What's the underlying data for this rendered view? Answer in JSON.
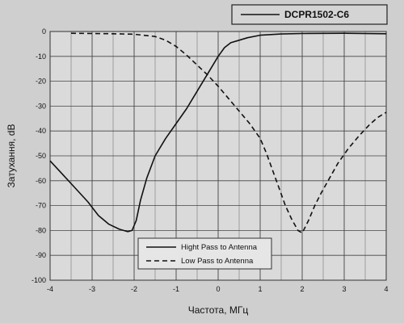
{
  "chart_data": {
    "type": "line",
    "title": "",
    "xlabel": "Частота, МГц",
    "ylabel": "Затухання, dB",
    "xlim": [
      -4,
      4
    ],
    "ylim": [
      -100,
      0
    ],
    "x_ticks": [
      -4,
      -3,
      -2,
      -1,
      0,
      1,
      2,
      3,
      4
    ],
    "y_ticks": [
      0,
      -10,
      -20,
      -30,
      -40,
      -50,
      -60,
      -70,
      -80,
      -90,
      -100
    ],
    "grid": true,
    "top_legend_label": "DCPR1502-C6",
    "legend_position": "bottom-center",
    "series": [
      {
        "name": "Hight Pass to Antenna",
        "style": "solid",
        "color": "#111111",
        "points": [
          [
            -4.0,
            -52
          ],
          [
            -3.7,
            -57.5
          ],
          [
            -3.4,
            -63
          ],
          [
            -3.1,
            -68.5
          ],
          [
            -2.85,
            -74
          ],
          [
            -2.6,
            -77.5
          ],
          [
            -2.35,
            -79.5
          ],
          [
            -2.15,
            -80.5
          ],
          [
            -2.05,
            -80
          ],
          [
            -1.95,
            -76
          ],
          [
            -1.85,
            -68
          ],
          [
            -1.7,
            -59
          ],
          [
            -1.5,
            -50
          ],
          [
            -1.25,
            -43
          ],
          [
            -1.0,
            -37
          ],
          [
            -0.75,
            -31
          ],
          [
            -0.5,
            -24
          ],
          [
            -0.25,
            -17
          ],
          [
            0.0,
            -10
          ],
          [
            0.15,
            -6.5
          ],
          [
            0.3,
            -4.5
          ],
          [
            0.5,
            -3.5
          ],
          [
            0.7,
            -2.5
          ],
          [
            1.0,
            -1.5
          ],
          [
            1.5,
            -1.0
          ],
          [
            2.0,
            -0.8
          ],
          [
            3.0,
            -0.7
          ],
          [
            4.0,
            -0.9
          ]
        ]
      },
      {
        "name": "Low Pass to Antenna",
        "style": "dashed",
        "color": "#111111",
        "points": [
          [
            -3.5,
            -0.7
          ],
          [
            -3.0,
            -0.8
          ],
          [
            -2.5,
            -0.9
          ],
          [
            -2.0,
            -1.1
          ],
          [
            -1.5,
            -2.0
          ],
          [
            -1.25,
            -3.5
          ],
          [
            -1.0,
            -6.0
          ],
          [
            -0.75,
            -9.5
          ],
          [
            -0.5,
            -13.5
          ],
          [
            -0.25,
            -17.5
          ],
          [
            0.0,
            -22
          ],
          [
            0.25,
            -27
          ],
          [
            0.5,
            -32
          ],
          [
            0.75,
            -37
          ],
          [
            1.0,
            -43
          ],
          [
            1.15,
            -49
          ],
          [
            1.3,
            -56
          ],
          [
            1.45,
            -63
          ],
          [
            1.6,
            -70
          ],
          [
            1.75,
            -75.5
          ],
          [
            1.9,
            -80
          ],
          [
            2.0,
            -81
          ],
          [
            2.15,
            -76
          ],
          [
            2.3,
            -70
          ],
          [
            2.45,
            -65
          ],
          [
            2.65,
            -59
          ],
          [
            2.85,
            -53
          ],
          [
            3.1,
            -47
          ],
          [
            3.35,
            -42
          ],
          [
            3.6,
            -37.5
          ],
          [
            3.8,
            -34.5
          ],
          [
            4.0,
            -32.5
          ]
        ]
      }
    ]
  }
}
